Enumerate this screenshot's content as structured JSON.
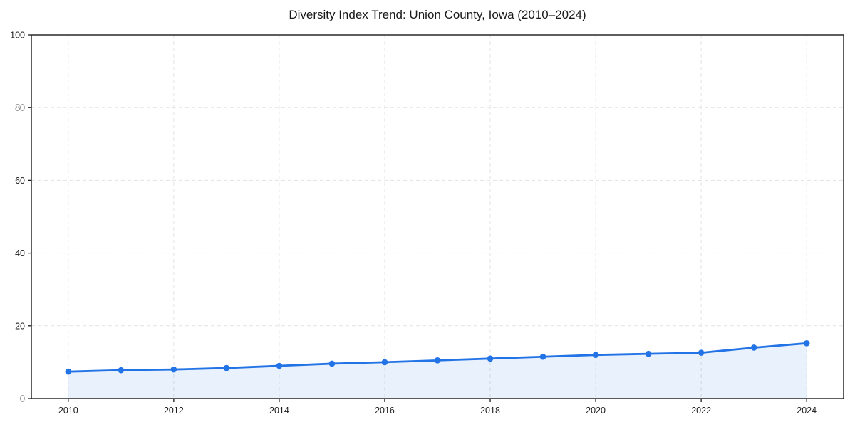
{
  "chart_data": {
    "type": "area",
    "title": "Diversity Index Trend: Union County, Iowa (2010–2024)",
    "xlabel": "",
    "ylabel": "",
    "x": [
      2010,
      2011,
      2012,
      2013,
      2014,
      2015,
      2016,
      2017,
      2018,
      2019,
      2020,
      2021,
      2022,
      2023,
      2024
    ],
    "series": [
      {
        "name": "Diversity Index",
        "values": [
          7.4,
          7.8,
          8.0,
          8.4,
          9.0,
          9.6,
          10.0,
          10.5,
          11.0,
          11.5,
          12.0,
          12.3,
          12.6,
          14.0,
          15.2
        ]
      }
    ],
    "xlim": [
      2009.3,
      2024.7
    ],
    "ylim": [
      0,
      100
    ],
    "xticks": [
      2010,
      2012,
      2014,
      2016,
      2018,
      2020,
      2022,
      2024
    ],
    "yticks": [
      0,
      20,
      40,
      60,
      80,
      100
    ],
    "grid": true,
    "grid_style": "dashed",
    "legend": "none",
    "marker": "circle",
    "colors": {
      "line": "#2273e6",
      "marker": "#2273e6",
      "fill": "#2273e6",
      "fill_opacity": 0.1,
      "grid": "#e3e3e3",
      "axis": "#1a1a1a",
      "text": "#1a1a1a",
      "background": "#ffffff"
    }
  }
}
